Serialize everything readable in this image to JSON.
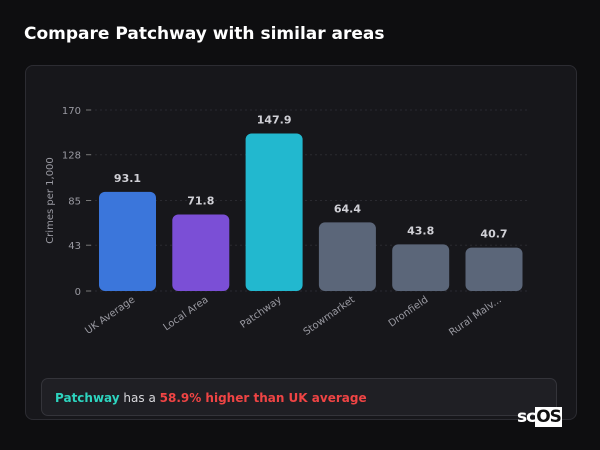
{
  "title": "Compare Patchway with similar areas",
  "chart_data": {
    "type": "bar",
    "ylabel": "Crimes per 1,000",
    "ylim": [
      0,
      170
    ],
    "yticks": [
      0,
      43,
      85,
      128,
      170
    ],
    "grid": true,
    "categories": [
      "UK Average",
      "Local Area",
      "Patchway",
      "Stowmarket",
      "Dronfield",
      "Rural Malv..."
    ],
    "values": [
      93.1,
      71.8,
      147.9,
      64.4,
      43.8,
      40.7
    ],
    "labels": [
      "93.1",
      "71.8",
      "147.9",
      "64.4",
      "43.8",
      "40.7"
    ],
    "colors": [
      "#3b76db",
      "#7b4fd6",
      "#22b8cf",
      "#5b6679",
      "#5b6679",
      "#5b6679"
    ]
  },
  "summary": {
    "place": "Patchway",
    "middle": " has a ",
    "stat": "58.9% higher than UK average"
  },
  "logo": {
    "text": "scOS"
  }
}
